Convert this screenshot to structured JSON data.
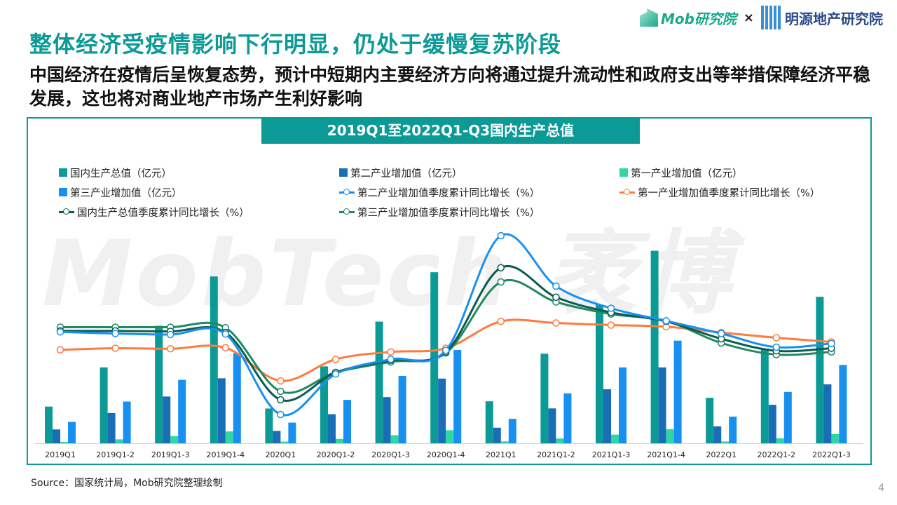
{
  "header": {
    "title": "整体经济受疫情影响下行明显，仍处于缓慢复苏阶段",
    "subtitle": "中国经济在疫情后呈恢复态势，预计中短期内主要经济方向将通过提升流动性和政府支出等举措保障经济平稳发展，这也将对商业地产市场产生利好影响",
    "logo_mob": "Mob研究院",
    "logo_sep": "×",
    "logo_partner": "明源地产研究院"
  },
  "watermark": "MobTech 袤博",
  "chart_data": {
    "type": "bar+line",
    "title": "2019Q1至2022Q1-Q3国内生产总值",
    "categories": [
      "2019Q1",
      "2019Q1-2",
      "2019Q1-3",
      "2019Q1-4",
      "2020Q1",
      "2020Q1-2",
      "2020Q1-3",
      "2020Q1-4",
      "2021Q1",
      "2021Q1-2",
      "2021Q1-3",
      "2021Q1-4",
      "2022Q1",
      "2022Q1-2",
      "2022Q1-3"
    ],
    "legend_position": "top",
    "grid": false,
    "bar_series": [
      {
        "name": "国内生产总值（亿元）",
        "color": "#0c9a96",
        "values": [
          218062,
          450933,
          697798,
          990865,
          206504,
          456614,
          722786,
          1015986,
          249310,
          532167,
          823131,
          1143670,
          270178,
          562642,
          870269
        ]
      },
      {
        "name": "第二产业增加值（亿元）",
        "color": "#1a6eb5",
        "values": [
          82346,
          179984,
          277869,
          386165,
          73638,
          172759,
          274267,
          384255,
          92623,
          207154,
          320940,
          450904,
          100600,
          228636,
          350189
        ]
      },
      {
        "name": "第一产业增加值（亿元）",
        "color": "#2fd6a6",
        "values": [
          8769,
          23207,
          43005,
          70467,
          10186,
          26053,
          48123,
          77754,
          11332,
          28402,
          51430,
          83086,
          10954,
          29137,
          54779
        ]
      },
      {
        "name": "第三产业增加值（亿元）",
        "color": "#1890f0",
        "values": [
          126947,
          247742,
          376925,
          534233,
          122680,
          257802,
          400396,
          553977,
          145355,
          296611,
          450761,
          609680,
          158624,
          304912,
          465301
        ]
      }
    ],
    "line_series": [
      {
        "name": "第二产业增加值季度累计同比增长（%）",
        "color": "#1890f0",
        "values": [
          6.1,
          5.8,
          5.6,
          5.7,
          -9.6,
          -1.9,
          0.9,
          2.6,
          24.4,
          14.8,
          10.6,
          8.2,
          5.8,
          3.2,
          3.9
        ]
      },
      {
        "name": "第一产业增加值季度累计同比增长（%）",
        "color": "#ff7a3d",
        "values": [
          2.7,
          3.0,
          2.9,
          3.1,
          -3.2,
          0.9,
          2.3,
          3.0,
          8.1,
          7.8,
          7.4,
          7.1,
          6.0,
          5.0,
          4.2
        ]
      },
      {
        "name": "国内生产总值季度累计同比增长（%）",
        "color": "#0b5c52",
        "values": [
          6.3,
          6.3,
          6.2,
          6.0,
          -6.8,
          -1.6,
          0.7,
          2.3,
          18.3,
          12.7,
          9.8,
          8.1,
          4.8,
          2.5,
          3.0
        ]
      },
      {
        "name": "第三产业增加值季度累计同比增长（%）",
        "color": "#1e8a5e",
        "values": [
          7.0,
          7.0,
          7.0,
          6.9,
          -5.2,
          -1.6,
          0.4,
          2.1,
          15.6,
          11.8,
          9.5,
          8.2,
          4.0,
          1.8,
          2.3
        ]
      }
    ]
  },
  "legend": [
    "国内生产总值（亿元）",
    "第二产业增加值（亿元）",
    "第一产业增加值（亿元）",
    "第三产业增加值（亿元）",
    "第二产业增加值季度累计同比增长（%）",
    "第一产业增加值季度累计同比增长（%）",
    "国内生产总值季度累计同比增长（%）",
    "第三产业增加值季度累计同比增长（%）"
  ],
  "footer": {
    "source": "Source：国家统计局，Mob研究院整理绘制",
    "page": "4"
  }
}
